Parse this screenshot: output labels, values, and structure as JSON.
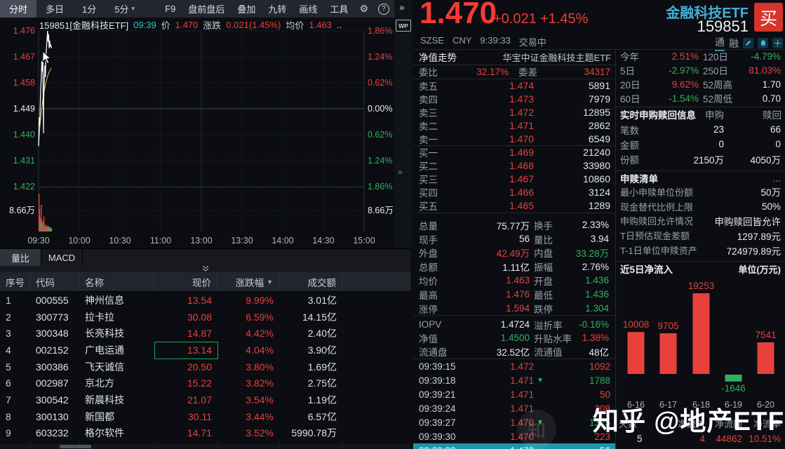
{
  "colors": {
    "red": "#e8413c",
    "green": "#2fb25e",
    "white": "#e9ebef",
    "gray": "#9aa1ab",
    "cyan": "#2ec7c9",
    "yellow": "#d9c35f",
    "teal_row": "#1d96aa"
  },
  "toolbar": {
    "tabs": [
      {
        "label": "分时",
        "active": true
      },
      {
        "label": "多日",
        "active": false
      },
      {
        "label": "1分",
        "active": false
      },
      {
        "label": "5分",
        "active": false,
        "caret": "▾"
      }
    ],
    "items": [
      "F9",
      "盘前盘后",
      "叠加",
      "九转",
      "画线",
      "工具"
    ],
    "gear_icon": "⚙",
    "help_icon": "?",
    "more_icon": "»"
  },
  "divider": {
    "more_icon": "»",
    "wp_label": "WP",
    "handle_icon": "»"
  },
  "chart_header": {
    "code_name": "159851[金融科技ETF]",
    "time": "09:39",
    "price_label": "价",
    "price": "1.470",
    "change_label": "涨跌",
    "change": "0.021(1.45%)",
    "avg_label": "均价",
    "avg": "1.463",
    "ellipsis": ".."
  },
  "panel_tabs": {
    "tabs": [
      {
        "label": "量比",
        "active": true
      },
      {
        "label": "MACD",
        "active": false
      }
    ]
  },
  "stock_table": {
    "headers": [
      "序号",
      "代码",
      "名称",
      "现价",
      "涨跌幅",
      "成交额"
    ],
    "sort_icon": "▼",
    "rows": [
      {
        "no": "1",
        "code": "000555",
        "name": "神州信息",
        "price": "13.54",
        "pct": "9.99%",
        "amount": "3.01亿",
        "highlighted": false
      },
      {
        "no": "2",
        "code": "300773",
        "name": "拉卡拉",
        "price": "30.08",
        "pct": "6.59%",
        "amount": "14.15亿",
        "highlighted": false
      },
      {
        "no": "3",
        "code": "300348",
        "name": "长亮科技",
        "price": "14.87",
        "pct": "4.42%",
        "amount": "2.40亿",
        "highlighted": false
      },
      {
        "no": "4",
        "code": "002152",
        "name": "广电运通",
        "price": "13.14",
        "pct": "4.04%",
        "amount": "3.90亿",
        "highlighted": true
      },
      {
        "no": "5",
        "code": "300386",
        "name": "飞天诚信",
        "price": "20.50",
        "pct": "3.80%",
        "amount": "1.69亿",
        "highlighted": false
      },
      {
        "no": "6",
        "code": "002987",
        "name": "京北方",
        "price": "15.22",
        "pct": "3.82%",
        "amount": "2.75亿",
        "highlighted": false
      },
      {
        "no": "7",
        "code": "300542",
        "name": "新晨科技",
        "price": "21.07",
        "pct": "3.54%",
        "amount": "1.19亿",
        "highlighted": false
      },
      {
        "no": "8",
        "code": "300130",
        "name": "新国都",
        "price": "30.11",
        "pct": "3.44%",
        "amount": "6.57亿",
        "highlighted": false
      },
      {
        "no": "9",
        "code": "603232",
        "name": "格尔软件",
        "price": "14.71",
        "pct": "3.52%",
        "amount": "5990.78万",
        "highlighted": false
      }
    ]
  },
  "quote": {
    "price": "1.470",
    "change": "+0.021",
    "pct": "+1.45%",
    "name": "金融科技ETF",
    "code": "159851",
    "buy_label": "买",
    "exchange": "SZSE",
    "currency": "CNY",
    "time": "9:39:33",
    "status": "交易中",
    "badge1": "通",
    "badge2": "融"
  },
  "nav_row": {
    "left": "净值走势",
    "right": "华宝中证金融科技主题ETF"
  },
  "commission": {
    "wb_label": "委比",
    "wb": "32.17%",
    "wc_label": "委差",
    "wc": "34317"
  },
  "order_book": {
    "asks": [
      {
        "label": "卖五",
        "price": "1.474",
        "vol": "5891"
      },
      {
        "label": "卖四",
        "price": "1.473",
        "vol": "7979"
      },
      {
        "label": "卖三",
        "price": "1.472",
        "vol": "12895"
      },
      {
        "label": "卖二",
        "price": "1.471",
        "vol": "2862"
      },
      {
        "label": "卖一",
        "price": "1.470",
        "vol": "6549"
      }
    ],
    "bids": [
      {
        "label": "买一",
        "price": "1.469",
        "vol": "21240"
      },
      {
        "label": "买二",
        "price": "1.468",
        "vol": "33980"
      },
      {
        "label": "买三",
        "price": "1.467",
        "vol": "10860"
      },
      {
        "label": "买四",
        "price": "1.466",
        "vol": "3124"
      },
      {
        "label": "买五",
        "price": "1.465",
        "vol": "1289"
      }
    ]
  },
  "stats": {
    "rows": [
      [
        {
          "l": "总量",
          "v": "75.77万",
          "c": "white"
        },
        {
          "l": "换手",
          "v": "2.33%",
          "c": "white"
        }
      ],
      [
        {
          "l": "现手",
          "v": "56",
          "c": "white"
        },
        {
          "l": "量比",
          "v": "3.94",
          "c": "white"
        }
      ],
      [
        {
          "l": "外盘",
          "v": "42.49万",
          "c": "red"
        },
        {
          "l": "内盘",
          "v": "33.28万",
          "c": "green"
        }
      ],
      [
        {
          "l": "总额",
          "v": "1.11亿",
          "c": "white"
        },
        {
          "l": "振幅",
          "v": "2.76%",
          "c": "white"
        }
      ],
      [
        {
          "l": "均价",
          "v": "1.463",
          "c": "red"
        },
        {
          "l": "开盘",
          "v": "1.436",
          "c": "green"
        }
      ],
      [
        {
          "l": "最高",
          "v": "1.476",
          "c": "red"
        },
        {
          "l": "最低",
          "v": "1.436",
          "c": "green"
        }
      ],
      [
        {
          "l": "涨停",
          "v": "1.594",
          "c": "red"
        },
        {
          "l": "跌停",
          "v": "1.304",
          "c": "green"
        }
      ]
    ],
    "rows2": [
      [
        {
          "l": "IOPV",
          "v": "1.4724",
          "c": "white"
        },
        {
          "l": "溢折率",
          "v": "-0.16%",
          "c": "green"
        }
      ],
      [
        {
          "l": "净值",
          "v": "1.4500",
          "c": "green"
        },
        {
          "l": "升贴水率",
          "v": "1.38%",
          "c": "red"
        }
      ],
      [
        {
          "l": "流通盘",
          "v": "32.52亿",
          "c": "white"
        },
        {
          "l": "流通值",
          "v": "48亿",
          "c": "white"
        }
      ]
    ]
  },
  "ticks": [
    {
      "time": "09:39:15",
      "price": "1.472",
      "arrow": "",
      "vol": "1092",
      "vc": "red",
      "highlighted": false
    },
    {
      "time": "09:39:18",
      "price": "1.471",
      "arrow": "▼",
      "vol": "1788",
      "vc": "green",
      "highlighted": false
    },
    {
      "time": "09:39:21",
      "price": "1.471",
      "arrow": "",
      "vol": "50",
      "vc": "red",
      "highlighted": false
    },
    {
      "time": "09:39:24",
      "price": "1.471",
      "arrow": "",
      "vol": "308",
      "vc": "red",
      "highlighted": false
    },
    {
      "time": "09:39:27",
      "price": "1.470",
      "arrow": "▼",
      "vol": "1325",
      "vc": "green",
      "highlighted": false
    },
    {
      "time": "09:39:30",
      "price": "1.470",
      "arrow": "",
      "vol": "223",
      "vc": "red",
      "highlighted": false
    },
    {
      "time": "09:39:33",
      "price": "1.470",
      "arrow": "",
      "vol": "56",
      "vc": "white",
      "highlighted": true
    }
  ],
  "performance": {
    "rows": [
      [
        {
          "l": "今年",
          "v": "2.51%",
          "c": "red"
        },
        {
          "l": "120日",
          "v": "-4.79%",
          "c": "green"
        }
      ],
      [
        {
          "l": "5日",
          "v": "-2.97%",
          "c": "green"
        },
        {
          "l": "250日",
          "v": "81.03%",
          "c": "red"
        }
      ],
      [
        {
          "l": "20日",
          "v": "9.62%",
          "c": "red"
        },
        {
          "l": "52周高",
          "v": "1.70",
          "c": "white"
        }
      ],
      [
        {
          "l": "60日",
          "v": "-1.54%",
          "c": "green"
        },
        {
          "l": "52周低",
          "v": "0.70",
          "c": "white"
        }
      ]
    ]
  },
  "purchase_info": {
    "title": "实时申购赎回信息",
    "col1": "申购",
    "col2": "赎回",
    "rows": [
      {
        "label": "笔数",
        "v1": "23",
        "v2": "66"
      },
      {
        "label": "金额",
        "v1": "0",
        "v2": "0"
      },
      {
        "label": "份额",
        "v1": "2150万",
        "v2": "4050万"
      }
    ]
  },
  "redeem_list": {
    "title": "申赎清单",
    "more": "...",
    "rows": [
      {
        "label": "最小申赎单位份额",
        "value": "50万"
      },
      {
        "label": "现金替代比例上限",
        "value": "50%"
      },
      {
        "label": "申购赎回允许情况",
        "value": "申购赎回皆允许"
      },
      {
        "label": "T日预估现金差额",
        "value": "1297.89元"
      },
      {
        "label": "T-1日单位申赎资产",
        "value": "724979.89元"
      }
    ]
  },
  "flow_section": {
    "title": "近5日净流入",
    "unit": "单位(万元)"
  },
  "chart_data": [
    {
      "type": "line",
      "title": "分时走势",
      "x_ticks": [
        "09:30",
        "10:00",
        "10:30",
        "11:00",
        "13:00",
        "13:30",
        "14:00",
        "14:30",
        "15:00"
      ],
      "price_axis": [
        {
          "label": "1.476",
          "color": "red"
        },
        {
          "label": "1.467",
          "color": "red"
        },
        {
          "label": "1.458",
          "color": "red"
        },
        {
          "label": "1.449",
          "color": "white"
        },
        {
          "label": "1.440",
          "color": "green"
        },
        {
          "label": "1.431",
          "color": "green"
        },
        {
          "label": "1.422",
          "color": "green"
        }
      ],
      "pct_axis": [
        {
          "label": "1.86%",
          "color": "red"
        },
        {
          "label": "1.24%",
          "color": "red"
        },
        {
          "label": "0.62%",
          "color": "red"
        },
        {
          "label": "0.00%",
          "color": "white"
        },
        {
          "label": "0.62%",
          "color": "green"
        },
        {
          "label": "1.24%",
          "color": "green"
        },
        {
          "label": "1.86%",
          "color": "green"
        }
      ],
      "vol_axis_label": "8.66万",
      "prev_close": 1.449,
      "y_max": 1.476,
      "y_min": 1.422,
      "session_minutes": 240,
      "series": [
        {
          "name": "price",
          "points": [
            [
              0,
              1.436
            ],
            [
              0.4,
              1.446
            ],
            [
              0.8,
              1.4428
            ],
            [
              1.2,
              1.45
            ],
            [
              1.6,
              1.456
            ],
            [
              2,
              1.46
            ],
            [
              2.4,
              1.4655
            ],
            [
              2.8,
              1.462
            ],
            [
              3.2,
              1.468
            ],
            [
              3.4,
              1.451
            ],
            [
              3.6,
              1.4405
            ],
            [
              3.8,
              1.452
            ],
            [
              4.2,
              1.458
            ],
            [
              4.6,
              1.464
            ],
            [
              5,
              1.46
            ],
            [
              5.4,
              1.466
            ],
            [
              5.8,
              1.47
            ],
            [
              6.2,
              1.473
            ],
            [
              6.6,
              1.476
            ],
            [
              7,
              1.4722
            ],
            [
              7.4,
              1.4748
            ],
            [
              7.8,
              1.47
            ],
            [
              8.2,
              1.4726
            ],
            [
              8.6,
              1.4705
            ],
            [
              9,
              1.471
            ],
            [
              9.5,
              1.47
            ]
          ]
        },
        {
          "name": "avg",
          "points": [
            [
              0,
              1.436
            ],
            [
              1,
              1.443
            ],
            [
              2,
              1.4478
            ],
            [
              3,
              1.452
            ],
            [
              4,
              1.4548
            ],
            [
              5,
              1.4572
            ],
            [
              6,
              1.4592
            ],
            [
              7,
              1.4608
            ],
            [
              8,
              1.462
            ],
            [
              9,
              1.4628
            ],
            [
              9.5,
              1.463
            ]
          ]
        }
      ],
      "volume": {
        "max": 8.66,
        "bars": [
          [
            0,
            8.66,
            "r"
          ],
          [
            0.4,
            5.2,
            "r"
          ],
          [
            0.8,
            3.1,
            "r"
          ],
          [
            1.2,
            2.2,
            "g"
          ],
          [
            1.6,
            6.1,
            "r"
          ],
          [
            2,
            2.7,
            "r"
          ],
          [
            2.4,
            1.9,
            "g"
          ],
          [
            2.8,
            1.5,
            "r"
          ],
          [
            3.2,
            2.4,
            "r"
          ],
          [
            3.6,
            3.4,
            "r"
          ],
          [
            4,
            1.3,
            "g"
          ],
          [
            4.4,
            1.1,
            "r"
          ],
          [
            4.8,
            1.6,
            "r"
          ],
          [
            5.2,
            0.9,
            "g"
          ],
          [
            5.6,
            1.2,
            "r"
          ],
          [
            6,
            0.8,
            "r"
          ],
          [
            6.4,
            1.4,
            "g"
          ],
          [
            6.8,
            0.9,
            "r"
          ],
          [
            7.2,
            1.1,
            "g"
          ],
          [
            7.6,
            0.7,
            "r"
          ],
          [
            8,
            1,
            "g"
          ],
          [
            8.4,
            0.6,
            "g"
          ],
          [
            8.8,
            0.9,
            "r"
          ],
          [
            9.2,
            0.7,
            "g"
          ]
        ]
      }
    },
    {
      "type": "bar",
      "title": "近5日净流入",
      "unit": "单位(万元)",
      "categories": [
        "6-16",
        "6-17",
        "6-18",
        "6-19",
        "6-20"
      ],
      "values": [
        10008,
        9705,
        19253,
        -1646,
        7541
      ],
      "colors": [
        "red",
        "red",
        "red",
        "green",
        "red"
      ],
      "summary": {
        "labels": [
          "天数",
          "净流入",
          "净流额",
          "净流率"
        ],
        "values": [
          "5",
          "4",
          "44862",
          "10.51%"
        ],
        "value_colors": [
          "white",
          "red",
          "red",
          "red"
        ]
      }
    }
  ],
  "watermark": {
    "text": "知乎 @地产ETF",
    "logo_glyph": "知"
  }
}
